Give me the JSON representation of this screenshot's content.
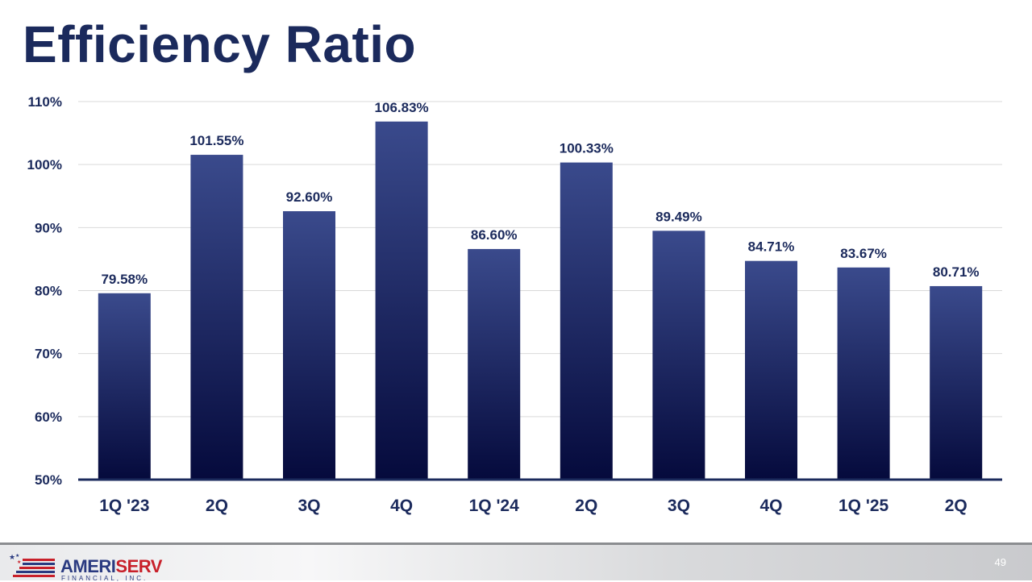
{
  "slide": {
    "title": "Efficiency Ratio",
    "page_number": "49"
  },
  "branding": {
    "logo_name_main": "AMERI",
    "logo_name_accent": "SERV",
    "logo_subtitle": "FINANCIAL, INC."
  },
  "colors": {
    "title": "#1b2a5c",
    "bar_top": "#3a4a8c",
    "bar_bottom": "#050a3c",
    "axis": "#1b2a5c",
    "grid": "#d9d9d9",
    "label": "#1b2a5c"
  },
  "chart_data": {
    "type": "bar",
    "title": "Efficiency Ratio",
    "xlabel": "",
    "ylabel": "",
    "ylim": [
      50,
      110
    ],
    "yticks": [
      "50%",
      "60%",
      "70%",
      "80%",
      "90%",
      "100%",
      "110%"
    ],
    "ytick_values": [
      50,
      60,
      70,
      80,
      90,
      100,
      110
    ],
    "grid": true,
    "categories": [
      "1Q '23",
      "2Q",
      "3Q",
      "4Q",
      "1Q '24",
      "2Q",
      "3Q",
      "4Q",
      "1Q '25",
      "2Q"
    ],
    "values": [
      79.58,
      101.55,
      92.6,
      106.83,
      86.6,
      100.33,
      89.49,
      84.71,
      83.67,
      80.71
    ],
    "value_labels": [
      "79.58%",
      "101.55%",
      "92.60%",
      "106.83%",
      "86.60%",
      "100.33%",
      "89.49%",
      "84.71%",
      "83.67%",
      "80.71%"
    ]
  }
}
